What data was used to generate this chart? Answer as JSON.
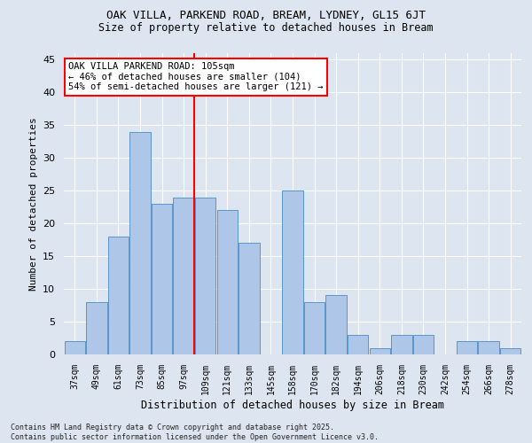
{
  "title": "OAK VILLA, PARKEND ROAD, BREAM, LYDNEY, GL15 6JT",
  "subtitle": "Size of property relative to detached houses in Bream",
  "xlabel": "Distribution of detached houses by size in Bream",
  "ylabel": "Number of detached properties",
  "categories": [
    "37sqm",
    "49sqm",
    "61sqm",
    "73sqm",
    "85sqm",
    "97sqm",
    "109sqm",
    "121sqm",
    "133sqm",
    "145sqm",
    "158sqm",
    "170sqm",
    "182sqm",
    "194sqm",
    "206sqm",
    "218sqm",
    "230sqm",
    "242sqm",
    "254sqm",
    "266sqm",
    "278sqm"
  ],
  "values": [
    2,
    8,
    18,
    34,
    23,
    24,
    24,
    22,
    17,
    0,
    25,
    8,
    9,
    3,
    1,
    3,
    3,
    0,
    2,
    2,
    1
  ],
  "bar_color": "#aec6e8",
  "bar_edge_color": "#5a96c8",
  "vline_color": "red",
  "vline_x_index": 6,
  "annotation_text": "OAK VILLA PARKEND ROAD: 105sqm\n← 46% of detached houses are smaller (104)\n54% of semi-detached houses are larger (121) →",
  "annotation_box_color": "white",
  "annotation_box_edgecolor": "red",
  "bg_color": "#dde5f0",
  "grid_color": "white",
  "footnote": "Contains HM Land Registry data © Crown copyright and database right 2025.\nContains public sector information licensed under the Open Government Licence v3.0.",
  "ylim": [
    0,
    46
  ],
  "yticks": [
    0,
    5,
    10,
    15,
    20,
    25,
    30,
    35,
    40,
    45
  ]
}
